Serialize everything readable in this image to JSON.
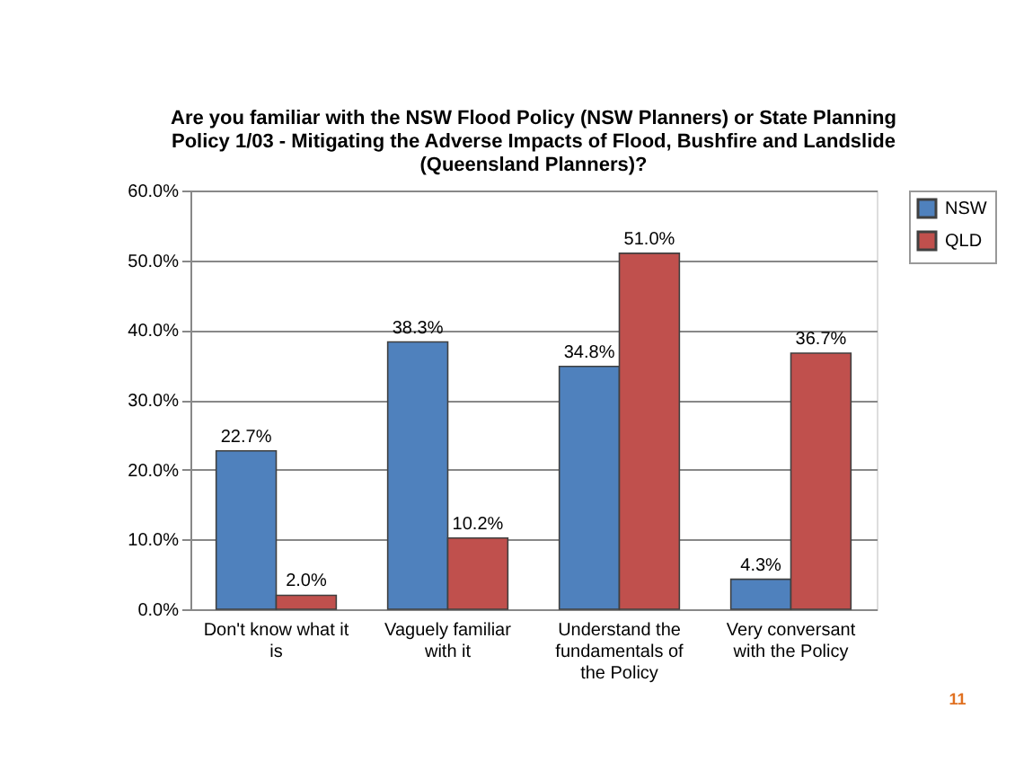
{
  "chart_data": {
    "type": "bar",
    "title": [
      "Are you familiar with the NSW Flood Policy (NSW Planners) or State Planning",
      "Policy 1/03 - Mitigating the Adverse Impacts of Flood, Bushfire and Landslide",
      "(Queensland Planners)?"
    ],
    "categories": [
      "Don't know what it is",
      "Vaguely familiar with it",
      "Understand the fundamentals of the Policy",
      "Very conversant with the Policy"
    ],
    "series": [
      {
        "name": "NSW",
        "color": "#4f81bd",
        "values": [
          22.7,
          38.3,
          34.8,
          4.3
        ],
        "value_labels": [
          "22.7%",
          "38.3%",
          "34.8%",
          "4.3%"
        ]
      },
      {
        "name": "QLD",
        "color": "#c0504d",
        "values": [
          2.0,
          10.2,
          51.0,
          36.7
        ],
        "value_labels": [
          "2.0%",
          "10.2%",
          "51.0%",
          "36.7%"
        ]
      }
    ],
    "ylim": [
      0,
      60
    ],
    "yticks": [
      {
        "value": 0,
        "label": "0.0%"
      },
      {
        "value": 10,
        "label": "10.0%"
      },
      {
        "value": 20,
        "label": "20.0%"
      },
      {
        "value": 30,
        "label": "30.0%"
      },
      {
        "value": 40,
        "label": "40.0%"
      },
      {
        "value": 50,
        "label": "50.0%"
      },
      {
        "value": 60,
        "label": "60.0%"
      }
    ],
    "grid": "y",
    "legend": "right",
    "annotations": [
      {
        "text": "11"
      }
    ]
  }
}
